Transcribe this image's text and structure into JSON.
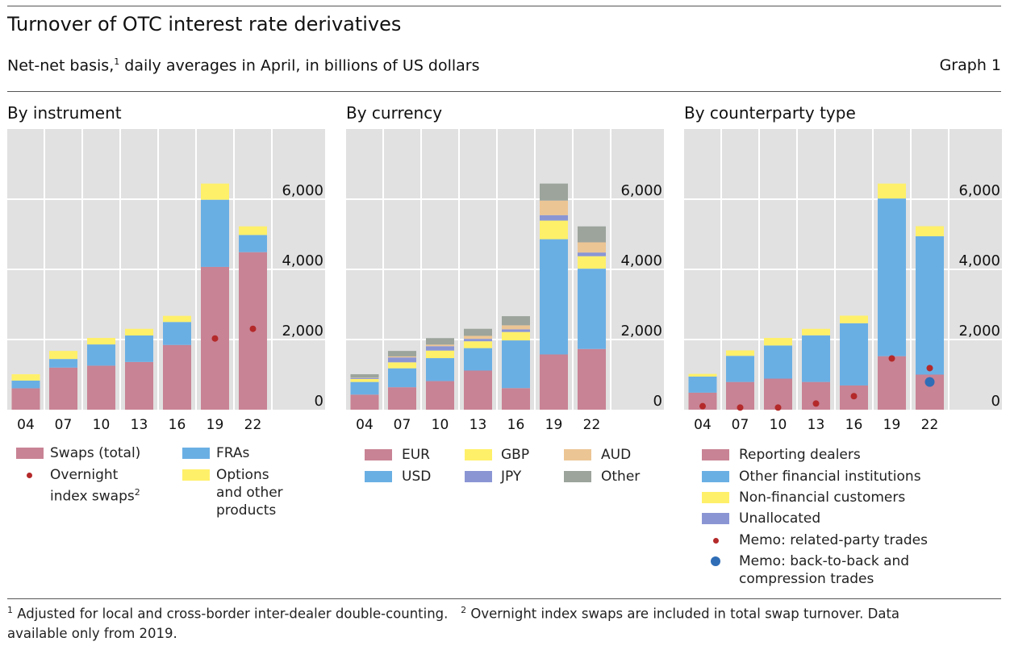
{
  "header": {
    "title": "Turnover of OTC interest rate derivatives",
    "subtitle_pre": "Net-net basis,",
    "subtitle_sup": "1",
    "subtitle_post": " daily averages in April, in billions of US dollars",
    "graph_label": "Graph 1"
  },
  "colors": {
    "swaps": "#c88394",
    "fras": "#6aafe4",
    "options": "#fff06a",
    "eur": "#c88394",
    "usd": "#6aafe4",
    "gbp": "#fff06a",
    "jpy": "#8a96d4",
    "aud": "#ecc594",
    "other": "#9ca49c",
    "reporting": "#c88394",
    "ofi": "#6aafe4",
    "nfc": "#fff06a",
    "unalloc": "#8a96d4",
    "related": "#b4292a",
    "b2b": "#2f6db6",
    "grid_bg": "#e1e1e1"
  },
  "chart_data": [
    {
      "type": "bar",
      "stacked": true,
      "title": "By instrument",
      "categories": [
        "04",
        "07",
        "10",
        "13",
        "16",
        "19",
        "22"
      ],
      "ylim": [
        0,
        8000
      ],
      "yticks": [
        "0",
        "2,000",
        "4,000",
        "6,000"
      ],
      "ytick_values": [
        0,
        2000,
        4000,
        6000
      ],
      "grid": true,
      "series": [
        {
          "name": "Swaps (total)",
          "key": "swaps",
          "values": [
            610,
            1200,
            1255,
            1360,
            1845,
            4070,
            4490
          ]
        },
        {
          "name": "FRAs",
          "key": "fras",
          "values": [
            220,
            245,
            605,
            755,
            655,
            1915,
            490
          ]
        },
        {
          "name": "Options and other products",
          "key": "options",
          "values": [
            180,
            230,
            185,
            190,
            175,
            460,
            245
          ]
        }
      ],
      "markers": [
        {
          "name": "Overnight index swaps",
          "sup": "2",
          "key": "related",
          "values": [
            null,
            null,
            null,
            null,
            null,
            2030,
            2305
          ]
        }
      ]
    },
    {
      "type": "bar",
      "stacked": true,
      "title": "By currency",
      "categories": [
        "04",
        "07",
        "10",
        "13",
        "16",
        "19",
        "22"
      ],
      "ylim": [
        0,
        8000
      ],
      "yticks": [
        "0",
        "2,000",
        "4,000",
        "6,000"
      ],
      "ytick_values": [
        0,
        2000,
        4000,
        6000
      ],
      "grid": true,
      "series": [
        {
          "name": "EUR",
          "key": "eur",
          "values": [
            430,
            640,
            815,
            1115,
            615,
            1575,
            1730
          ]
        },
        {
          "name": "USD",
          "key": "usd",
          "values": [
            360,
            540,
            655,
            640,
            1360,
            3285,
            2290
          ]
        },
        {
          "name": "GBP",
          "key": "gbp",
          "values": [
            85,
            170,
            215,
            195,
            240,
            530,
            355
          ]
        },
        {
          "name": "JPY",
          "key": "jpy",
          "values": [
            30,
            140,
            125,
            70,
            75,
            155,
            105
          ]
        },
        {
          "name": "AUD",
          "key": "aud",
          "values": [
            10,
            30,
            45,
            85,
            115,
            415,
            290
          ]
        },
        {
          "name": "Other",
          "key": "other",
          "values": [
            95,
            155,
            185,
            200,
            260,
            485,
            455
          ]
        }
      ],
      "markers": []
    },
    {
      "type": "bar",
      "stacked": true,
      "title": "By counterparty type",
      "categories": [
        "04",
        "07",
        "10",
        "13",
        "16",
        "19",
        "22"
      ],
      "ylim": [
        0,
        8000
      ],
      "yticks": [
        "0",
        "2,000",
        "4,000",
        "6,000"
      ],
      "ytick_values": [
        0,
        2000,
        4000,
        6000
      ],
      "grid": true,
      "series": [
        {
          "name": "Reporting dealers",
          "key": "reporting",
          "values": [
            485,
            790,
            885,
            790,
            690,
            1525,
            1000
          ]
        },
        {
          "name": "Other financial institutions",
          "key": "ofi",
          "values": [
            460,
            745,
            945,
            1330,
            1775,
            4495,
            3945
          ]
        },
        {
          "name": "Non-financial customers",
          "key": "nfc",
          "values": [
            75,
            155,
            215,
            185,
            215,
            425,
            285
          ]
        },
        {
          "name": "Unallocated",
          "key": "unalloc",
          "values": [
            0,
            0,
            0,
            0,
            0,
            0,
            0
          ]
        }
      ],
      "markers": [
        {
          "name": "Memo: related-party trades",
          "key": "related",
          "values": [
            100,
            60,
            60,
            175,
            385,
            1460,
            1185
          ]
        },
        {
          "name": "Memo: back-to-back and compression trades",
          "key": "b2b",
          "values": [
            null,
            null,
            null,
            null,
            null,
            null,
            790
          ]
        }
      ]
    }
  ],
  "legend": {
    "instrument": {
      "swaps": "Swaps (total)",
      "ois_1": "Overnight",
      "ois_2": "index swaps",
      "ois_sup": "2",
      "fras": "FRAs",
      "options_1": "Options",
      "options_2": "and other",
      "options_3": "products"
    },
    "currency": {
      "eur": "EUR",
      "usd": "USD",
      "gbp": "GBP",
      "jpy": "JPY",
      "aud": "AUD",
      "other": "Other"
    },
    "counterparty": {
      "reporting": "Reporting dealers",
      "ofi": "Other financial institutions",
      "nfc": "Non-financial customers",
      "unalloc": "Unallocated",
      "related": "Memo: related-party trades",
      "b2b_1": "Memo: back-to-back and",
      "b2b_2": "compression trades"
    }
  },
  "footnotes": {
    "n1": "1",
    "t1": " Adjusted for local and cross-border inter-dealer double-counting.",
    "n2": "2",
    "t2_a": " Overnight index swaps are included in total swap turnover. Data",
    "t2_b": "available only from 2019."
  }
}
